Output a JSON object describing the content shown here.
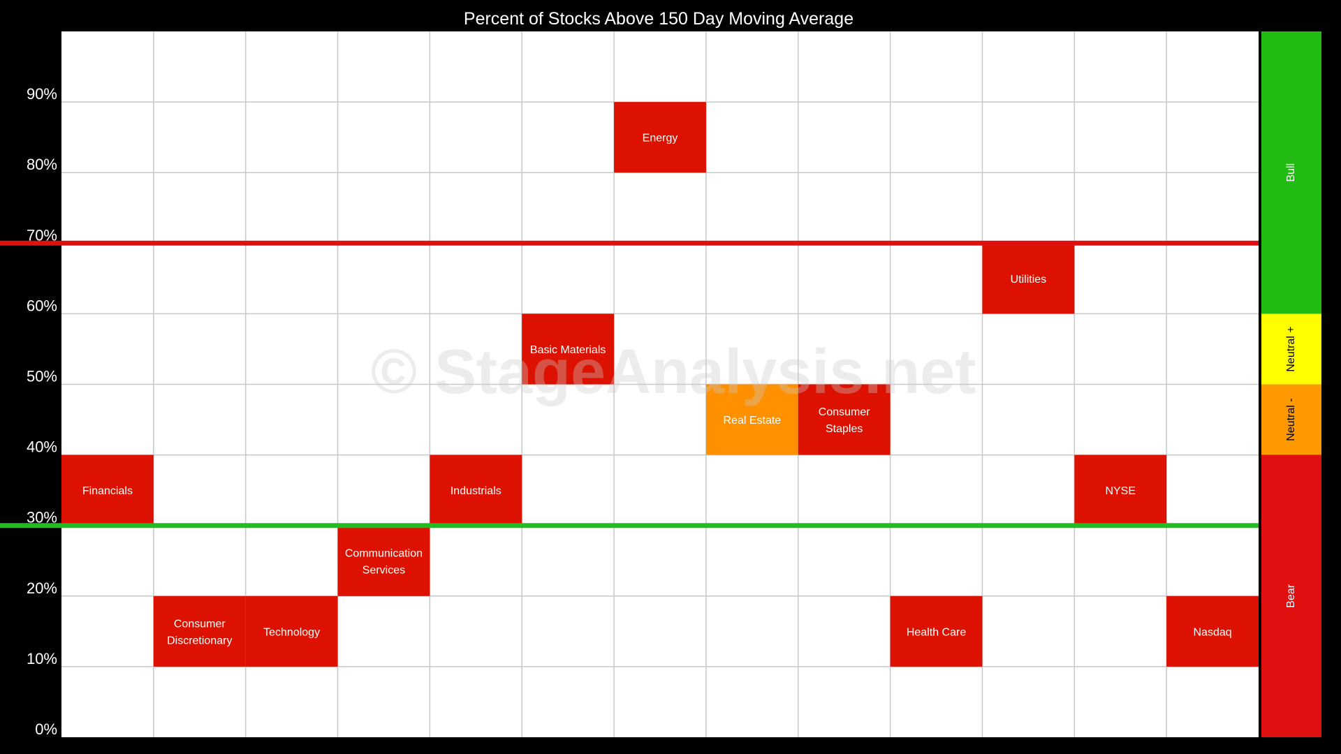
{
  "chart_data": {
    "type": "heatmap",
    "title": "Percent of Stocks Above 150 Day Moving Average",
    "y_ticks": [
      "0%",
      "10%",
      "20%",
      "30%",
      "40%",
      "50%",
      "60%",
      "70%",
      "80%",
      "90%"
    ],
    "ylim": [
      0,
      100
    ],
    "grid": true,
    "columns": 13,
    "thresholds": [
      {
        "value": 70,
        "color": "#e01010"
      },
      {
        "value": 30,
        "color": "#22bb22"
      }
    ],
    "zones": [
      {
        "label": "Bull",
        "from": 60,
        "to": 100,
        "color": "#22bb11"
      },
      {
        "label": "Neutral +",
        "from": 50,
        "to": 60,
        "color": "#ffff00"
      },
      {
        "label": "Neutral -",
        "from": 40,
        "to": 50,
        "color": "#ff9900"
      },
      {
        "label": "Bear",
        "from": 0,
        "to": 40,
        "color": "#e01010"
      }
    ],
    "cells": [
      {
        "name": "Financials",
        "lines": [
          "Financials"
        ],
        "column": 0,
        "range": [
          30,
          40
        ],
        "color": "#dd1100"
      },
      {
        "name": "Consumer Discretionary",
        "lines": [
          "Consumer",
          "Discretionary"
        ],
        "column": 1,
        "range": [
          10,
          20
        ],
        "color": "#dd1100"
      },
      {
        "name": "Technology",
        "lines": [
          "Technology"
        ],
        "column": 2,
        "range": [
          10,
          20
        ],
        "color": "#dd1100"
      },
      {
        "name": "Communication Services",
        "lines": [
          "Communication",
          "Services"
        ],
        "column": 3,
        "range": [
          20,
          30
        ],
        "color": "#dd1100"
      },
      {
        "name": "Industrials",
        "lines": [
          "Industrials"
        ],
        "column": 4,
        "range": [
          30,
          40
        ],
        "color": "#dd1100"
      },
      {
        "name": "Basic Materials",
        "lines": [
          "Basic Materials"
        ],
        "column": 5,
        "range": [
          50,
          60
        ],
        "color": "#dd1100"
      },
      {
        "name": "Energy",
        "lines": [
          "Energy"
        ],
        "column": 6,
        "range": [
          80,
          90
        ],
        "color": "#dd1100"
      },
      {
        "name": "Real Estate",
        "lines": [
          "Real Estate"
        ],
        "column": 7,
        "range": [
          40,
          50
        ],
        "color": "#ff9100"
      },
      {
        "name": "Consumer Staples",
        "lines": [
          "Consumer",
          "Staples"
        ],
        "column": 8,
        "range": [
          40,
          50
        ],
        "color": "#dd1100"
      },
      {
        "name": "Health Care",
        "lines": [
          "Health Care"
        ],
        "column": 9,
        "range": [
          10,
          20
        ],
        "color": "#dd1100"
      },
      {
        "name": "Utilities",
        "lines": [
          "Utilities"
        ],
        "column": 10,
        "range": [
          60,
          70
        ],
        "color": "#dd1100"
      },
      {
        "name": "NYSE",
        "lines": [
          "NYSE"
        ],
        "column": 11,
        "range": [
          30,
          40
        ],
        "color": "#dd1100"
      },
      {
        "name": "Nasdaq",
        "lines": [
          "Nasdaq"
        ],
        "column": 12,
        "range": [
          10,
          20
        ],
        "color": "#dd1100"
      }
    ]
  },
  "watermark": "© StageAnalysis.net",
  "colors": {
    "background": "#000000",
    "plot_background": "#ffffff",
    "grid": "#c8c8c8",
    "text": "#ffffff",
    "watermark": "rgba(200,200,200,0.35)"
  }
}
